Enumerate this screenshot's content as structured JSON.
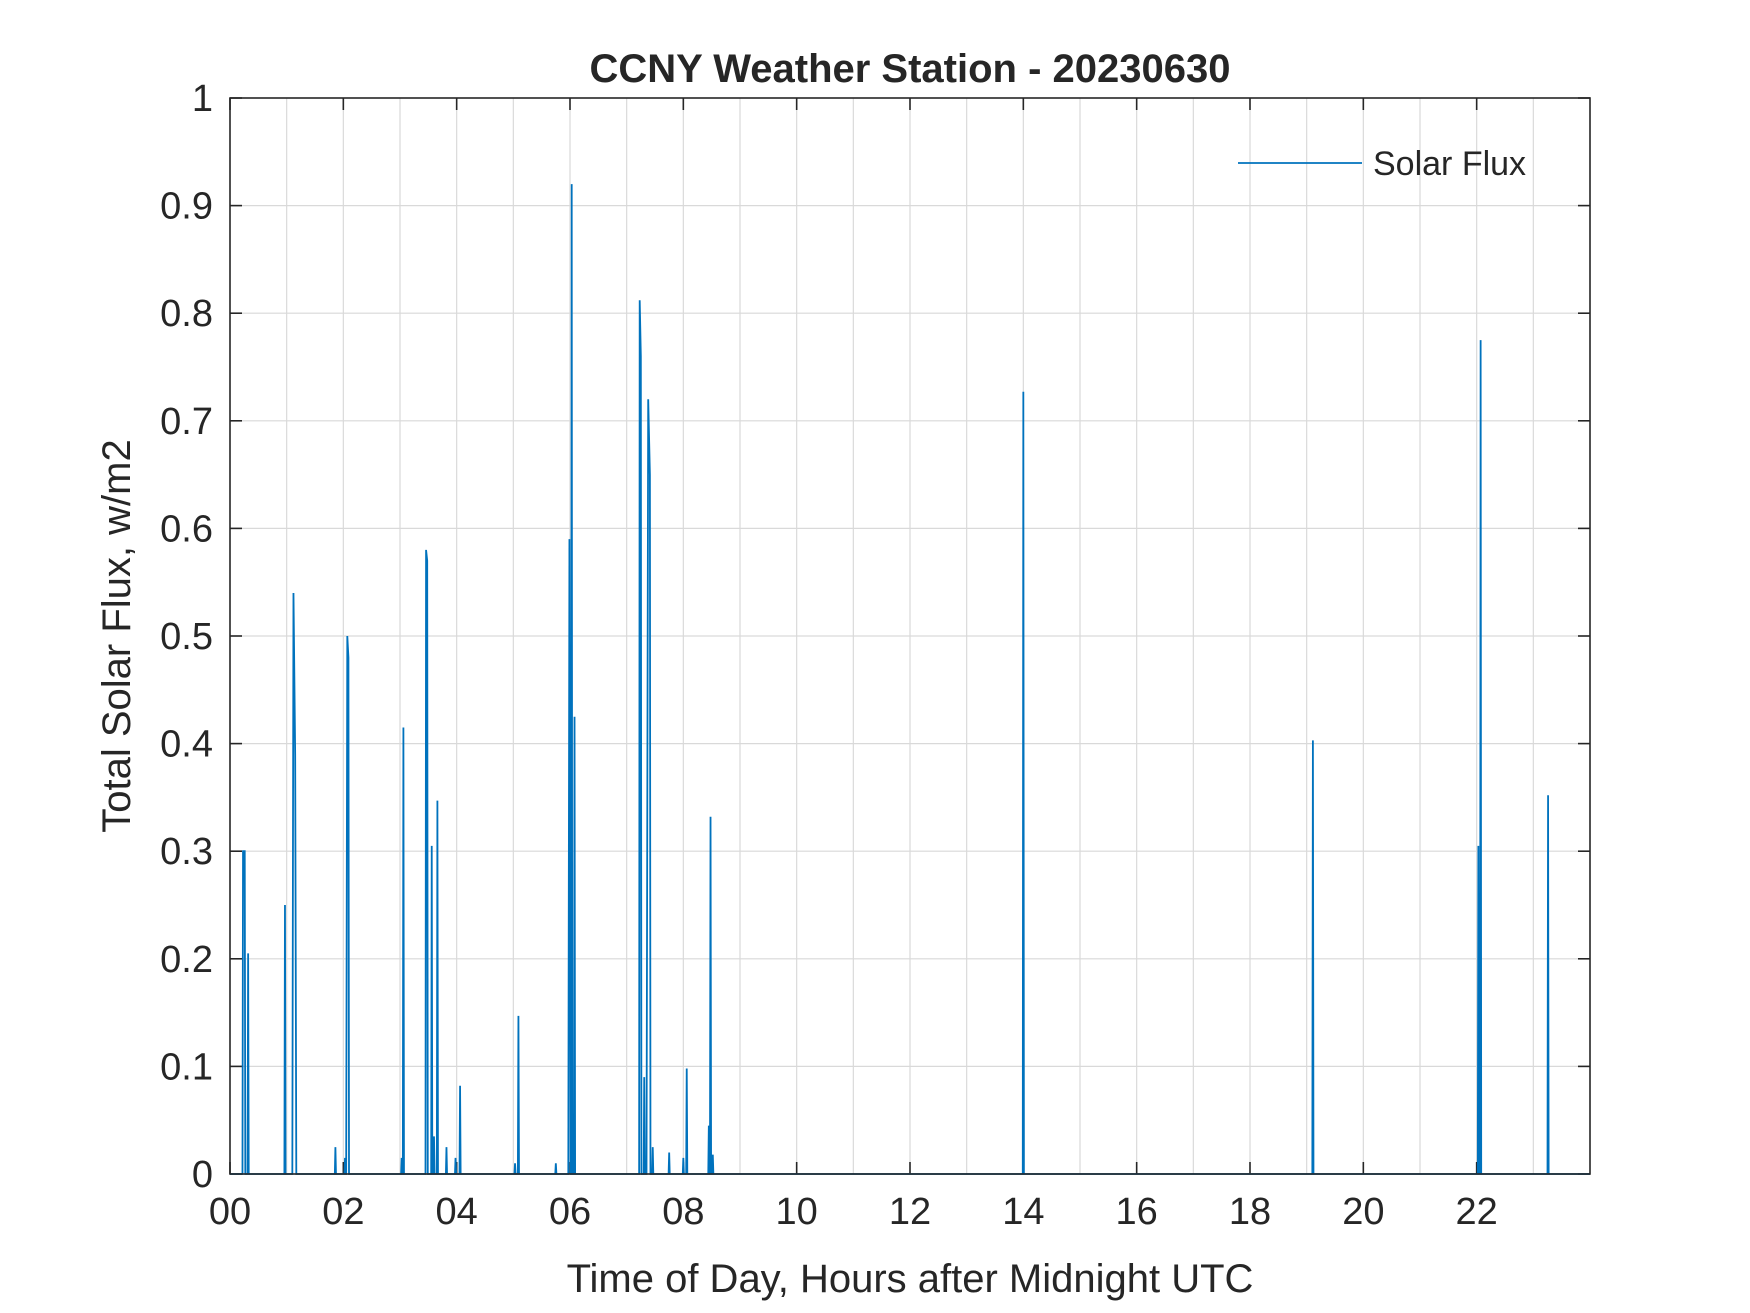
{
  "chart_data": {
    "type": "line",
    "title": "CCNY Weather Station - 20230630",
    "xlabel": "Time of Day, Hours after Midnight UTC",
    "ylabel": "Total Solar Flux, w/m2",
    "xlim": [
      0,
      24
    ],
    "ylim": [
      0,
      1
    ],
    "xticks": [
      0,
      2,
      4,
      6,
      8,
      10,
      12,
      14,
      16,
      18,
      20,
      22
    ],
    "xtick_labels": [
      "00",
      "02",
      "04",
      "06",
      "08",
      "10",
      "12",
      "14",
      "16",
      "18",
      "20",
      "22"
    ],
    "yticks": [
      0,
      0.1,
      0.2,
      0.3,
      0.4,
      0.5,
      0.6,
      0.7,
      0.8,
      0.9,
      1
    ],
    "ytick_labels": [
      "0",
      "0.1",
      "0.2",
      "0.3",
      "0.4",
      "0.5",
      "0.6",
      "0.7",
      "0.8",
      "0.9",
      "1"
    ],
    "grid": true,
    "minor_x_grid": true,
    "legend_position": "top-right",
    "series": [
      {
        "name": "Solar Flux",
        "color": "#0072BD",
        "points": [
          [
            0.22,
            0
          ],
          [
            0.23,
            0.3
          ],
          [
            0.26,
            0.3
          ],
          [
            0.27,
            0
          ],
          [
            0.31,
            0
          ],
          [
            0.32,
            0.205
          ],
          [
            0.33,
            0
          ],
          [
            0.96,
            0
          ],
          [
            0.97,
            0.25
          ],
          [
            0.98,
            0
          ],
          [
            1.1,
            0
          ],
          [
            1.12,
            0.54
          ],
          [
            1.15,
            0.39
          ],
          [
            1.17,
            0
          ],
          [
            1.85,
            0
          ],
          [
            1.86,
            0.025
          ],
          [
            1.87,
            0
          ],
          [
            2.02,
            0
          ],
          [
            2.03,
            0.015
          ],
          [
            2.04,
            0
          ],
          [
            2.05,
            0
          ],
          [
            2.07,
            0.5
          ],
          [
            2.09,
            0.48
          ],
          [
            2.1,
            0
          ],
          [
            3.02,
            0
          ],
          [
            3.03,
            0.015
          ],
          [
            3.04,
            0
          ],
          [
            3.05,
            0
          ],
          [
            3.06,
            0.415
          ],
          [
            3.07,
            0
          ],
          [
            3.45,
            0
          ],
          [
            3.46,
            0.58
          ],
          [
            3.48,
            0.57
          ],
          [
            3.49,
            0
          ],
          [
            3.55,
            0
          ],
          [
            3.56,
            0.305
          ],
          [
            3.57,
            0
          ],
          [
            3.59,
            0
          ],
          [
            3.6,
            0.035
          ],
          [
            3.61,
            0
          ],
          [
            3.65,
            0
          ],
          [
            3.66,
            0.347
          ],
          [
            3.67,
            0
          ],
          [
            3.81,
            0
          ],
          [
            3.82,
            0.025
          ],
          [
            3.83,
            0
          ],
          [
            3.97,
            0
          ],
          [
            3.98,
            0.015
          ],
          [
            3.99,
            0
          ],
          [
            4.05,
            0
          ],
          [
            4.06,
            0.082
          ],
          [
            4.07,
            0
          ],
          [
            5.02,
            0
          ],
          [
            5.03,
            0.01
          ],
          [
            5.04,
            0
          ],
          [
            5.08,
            0
          ],
          [
            5.09,
            0.147
          ],
          [
            5.1,
            0
          ],
          [
            5.74,
            0
          ],
          [
            5.75,
            0.01
          ],
          [
            5.76,
            0
          ],
          [
            5.97,
            0
          ],
          [
            5.99,
            0.59
          ],
          [
            6.0,
            0.3
          ],
          [
            6.01,
            0
          ],
          [
            6.02,
            0
          ],
          [
            6.03,
            0.92
          ],
          [
            6.04,
            0
          ],
          [
            6.07,
            0
          ],
          [
            6.08,
            0.425
          ],
          [
            6.09,
            0
          ],
          [
            7.22,
            0
          ],
          [
            7.23,
            0.812
          ],
          [
            7.25,
            0.76
          ],
          [
            7.26,
            0
          ],
          [
            7.3,
            0
          ],
          [
            7.31,
            0.09
          ],
          [
            7.32,
            0
          ],
          [
            7.35,
            0
          ],
          [
            7.38,
            0.72
          ],
          [
            7.41,
            0.65
          ],
          [
            7.42,
            0
          ],
          [
            7.45,
            0
          ],
          [
            7.46,
            0.025
          ],
          [
            7.47,
            0
          ],
          [
            7.74,
            0
          ],
          [
            7.75,
            0.02
          ],
          [
            7.76,
            0
          ],
          [
            7.99,
            0
          ],
          [
            8.0,
            0.015
          ],
          [
            8.01,
            0
          ],
          [
            8.05,
            0
          ],
          [
            8.06,
            0.098
          ],
          [
            8.07,
            0
          ],
          [
            8.44,
            0
          ],
          [
            8.45,
            0.045
          ],
          [
            8.46,
            0
          ],
          [
            8.47,
            0
          ],
          [
            8.48,
            0.332
          ],
          [
            8.49,
            0
          ],
          [
            8.51,
            0
          ],
          [
            8.52,
            0.018
          ],
          [
            8.53,
            0
          ],
          [
            13.99,
            0
          ],
          [
            14.0,
            0.727
          ],
          [
            14.01,
            0
          ],
          [
            19.1,
            0
          ],
          [
            19.11,
            0.403
          ],
          [
            19.12,
            0
          ],
          [
            22.02,
            0
          ],
          [
            22.03,
            0.305
          ],
          [
            22.04,
            0
          ],
          [
            22.06,
            0
          ],
          [
            22.07,
            0.775
          ],
          [
            22.08,
            0
          ],
          [
            23.25,
            0
          ],
          [
            23.26,
            0.352
          ],
          [
            23.27,
            0
          ]
        ]
      }
    ]
  }
}
